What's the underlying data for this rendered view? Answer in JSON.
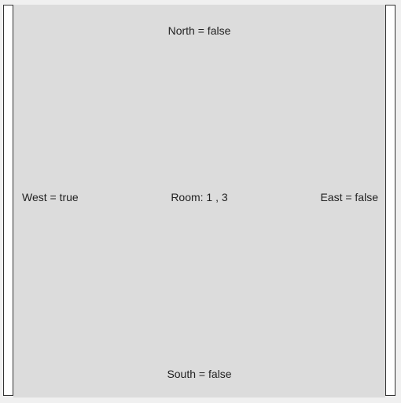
{
  "room": {
    "north": "North = false",
    "south": "South = false",
    "west": "West = true",
    "east": "East = false",
    "center": "Room: 1 , 3"
  },
  "colors": {
    "room_bg": "#dcdcdc",
    "page_bg": "#f0f0f0",
    "wall_fill": "#ffffff",
    "wall_border": "#333333"
  }
}
